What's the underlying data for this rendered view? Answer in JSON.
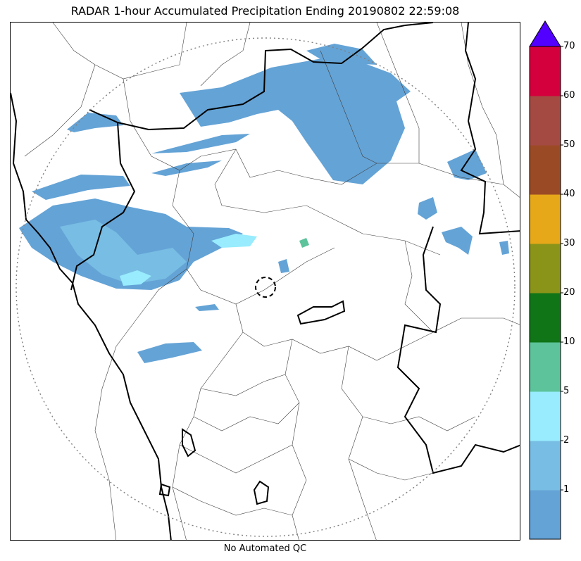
{
  "title": "RADAR 1-hour Accumulated Precipitation Ending 20190802 22:59:08",
  "footer": "No Automated QC",
  "colorbar": {
    "levels": [
      "1",
      "2",
      "5",
      "10",
      "20",
      "30",
      "40",
      "50",
      "60",
      "70"
    ],
    "colors": [
      "#64a3d6",
      "#78bde3",
      "#98ecfd",
      "#5cc39b",
      "#0f7516",
      "#8a9419",
      "#e6a818",
      "#9b4a26",
      "#a44a43",
      "#d4003d"
    ],
    "extend_color": "#5200ff"
  },
  "map": {
    "range_ring": "dotted",
    "radar_site_marker": "dashed-circle",
    "boundary_style": {
      "state": "#000000",
      "district": "#404040"
    },
    "rain_colors": {
      "light": "#64a3d6",
      "moderate": "#78bde3",
      "heavy": "#98ecfd",
      "very_heavy": "#5cc39b"
    }
  }
}
